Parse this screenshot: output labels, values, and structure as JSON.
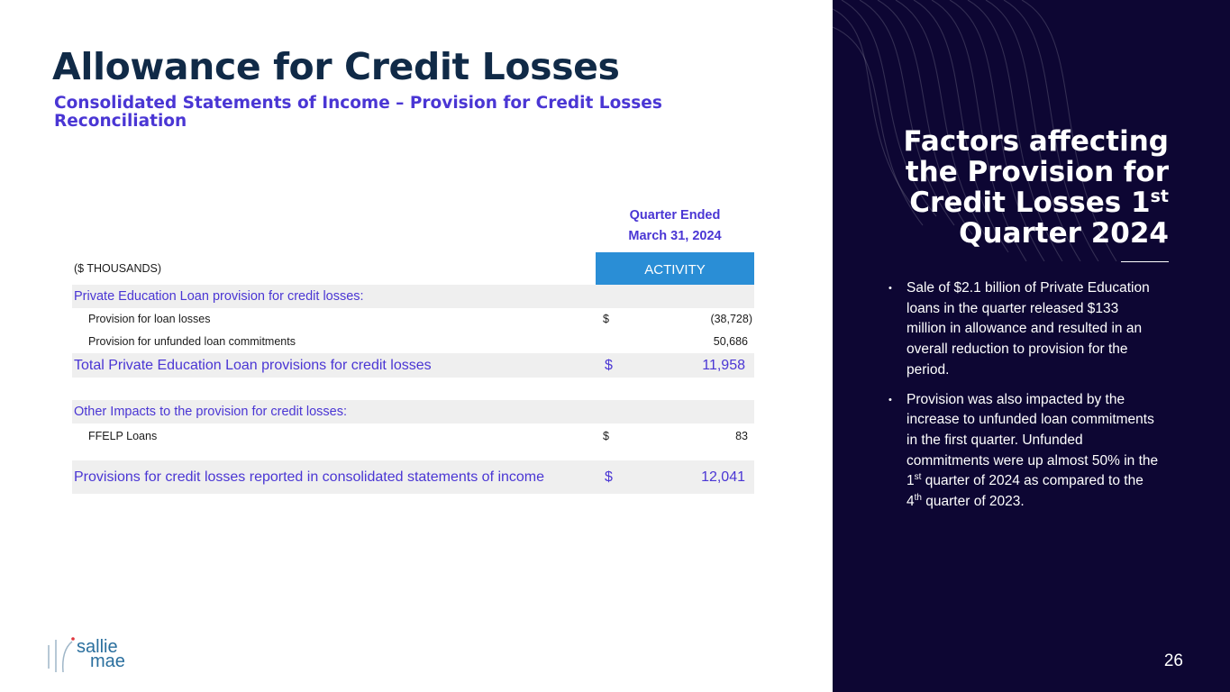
{
  "title": "Allowance for Credit Losses",
  "subtitle": "Consolidated Statements of Income – Provision for Credit Losses Reconciliation",
  "table": {
    "period_line1": "Quarter Ended",
    "period_line2": "March 31, 2024",
    "units_label": "($ THOUSANDS)",
    "column_header": "ACTIVITY",
    "section1_header": "Private Education Loan provision for credit losses:",
    "provision_loan_losses": {
      "label": "Provision for loan losses",
      "currency": "$",
      "amount": "(38,728)"
    },
    "provision_unfunded": {
      "label": "Provision for unfunded loan commitments",
      "amount": "50,686"
    },
    "total_private": {
      "label": "Total Private Education Loan provisions for credit losses",
      "currency": "$",
      "amount": "11,958"
    },
    "section2_header": "Other Impacts to the provision for credit losses:",
    "ffelp": {
      "label": "FFELP Loans",
      "currency": "$",
      "amount": "83"
    },
    "grand_total": {
      "label": "Provisions for credit losses reported in consolidated statements of income",
      "currency": "$",
      "amount": "12,041"
    }
  },
  "panel": {
    "title_line1": "Factors affecting",
    "title_line2": "the Provision for",
    "title_line3": "Credit Losses 1",
    "title_line3_sup": "st",
    "title_line4": "Quarter 2024",
    "bullet1": "Sale of $2.1 billion of Private Education loans in the quarter released $133 million in allowance and resulted in an overall reduction to provision for the period.",
    "bullet2_a": "Provision was also impacted by the increase to unfunded loan commitments in the first quarter. Unfunded commitments were up almost 50% in the 1",
    "bullet2_sup1": "st",
    "bullet2_b": " quarter of 2024 as compared to the 4",
    "bullet2_sup2": "th",
    "bullet2_c": " quarter of 2023.",
    "page_number": "26"
  },
  "logo": {
    "line1": "sallie",
    "line2": "mae"
  },
  "colors": {
    "navy": "#102a47",
    "accent": "#4a36d4",
    "header_blue": "#2a8ed6",
    "panel_bg": "#0d0633"
  }
}
